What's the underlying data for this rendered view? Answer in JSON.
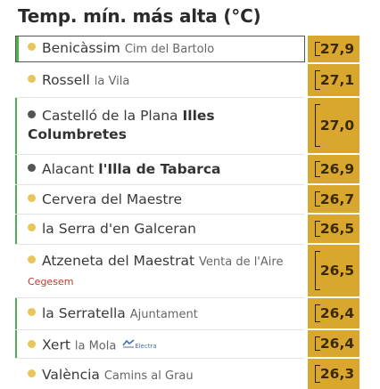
{
  "title": "Temp. mín. más alta (°C)",
  "colors": {
    "bar": "#d9a62e",
    "accent": "#4caf50",
    "dot": "#e8c65a"
  },
  "rows": [
    {
      "name": "Benicàssim",
      "sub": "Cim del Bartolo",
      "value": "27,9"
    },
    {
      "name": "Rossell",
      "sub": "la Vila",
      "value": "27,1"
    },
    {
      "name": "Castelló de la Plana",
      "subbold": "Illes Columbretes",
      "value": "27,0"
    },
    {
      "name": "Alacant",
      "subbold": "l'Illa de Tabarca",
      "value": "26,9"
    },
    {
      "name": "Cervera del Maestre",
      "value": "26,7"
    },
    {
      "name": "la Serra d'en Galceran",
      "value": "26,5"
    },
    {
      "name": "Atzeneta del Maestrat",
      "sub": "Venta de l'Aire",
      "org": "Cegesem",
      "value": "26,5"
    },
    {
      "name": "la Serratella",
      "sub": "Ajuntament",
      "value": "26,4"
    },
    {
      "name": "Xert",
      "sub": "la Mola",
      "logo": "Electra",
      "value": "26,4"
    },
    {
      "name": "València",
      "sub": "Camins al Grau",
      "value": "26,3"
    }
  ]
}
